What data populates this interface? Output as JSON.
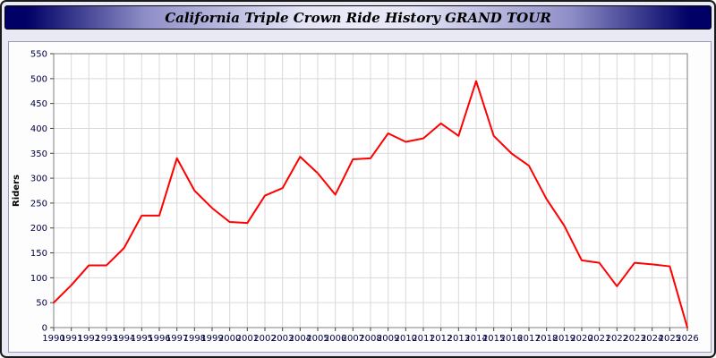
{
  "header": {
    "title": "California Triple Crown Ride History GRAND TOUR"
  },
  "colors": {
    "page_background": "#e9e9f5",
    "titlebar_dark": "#000066",
    "titlebar_light": "#ecebf8",
    "plot_background": "#ffffff",
    "gridline": "#d9d9d9",
    "axis_frame": "#808080",
    "tick_label": "#000040",
    "line": "#ff0000"
  },
  "chart_data": {
    "type": "line",
    "title": "California Triple Crown Ride History GRAND TOUR",
    "xlabel": "",
    "ylabel": "Riders",
    "ylim": [
      0,
      550
    ],
    "ytick_step": 50,
    "grid": true,
    "legend": "none",
    "line_color": "#ff0000",
    "categories": [
      "1990",
      "1991",
      "1992",
      "1993",
      "1994",
      "1995",
      "1996",
      "1997",
      "1998",
      "1999",
      "2000",
      "2001",
      "2002",
      "2003",
      "2004",
      "2005",
      "2006",
      "2007",
      "2008",
      "2009",
      "2010",
      "2011",
      "2012",
      "2013",
      "2014",
      "2015",
      "2016",
      "2017",
      "2018",
      "2019",
      "2020",
      "2021",
      "2022",
      "2023",
      "2024",
      "2025",
      "2026"
    ],
    "values": [
      50,
      85,
      125,
      125,
      160,
      225,
      225,
      340,
      275,
      240,
      212,
      210,
      265,
      280,
      343,
      310,
      267,
      338,
      340,
      390,
      373,
      380,
      410,
      385,
      495,
      385,
      350,
      325,
      258,
      205,
      135,
      130,
      83,
      130,
      127,
      123,
      0
    ]
  }
}
